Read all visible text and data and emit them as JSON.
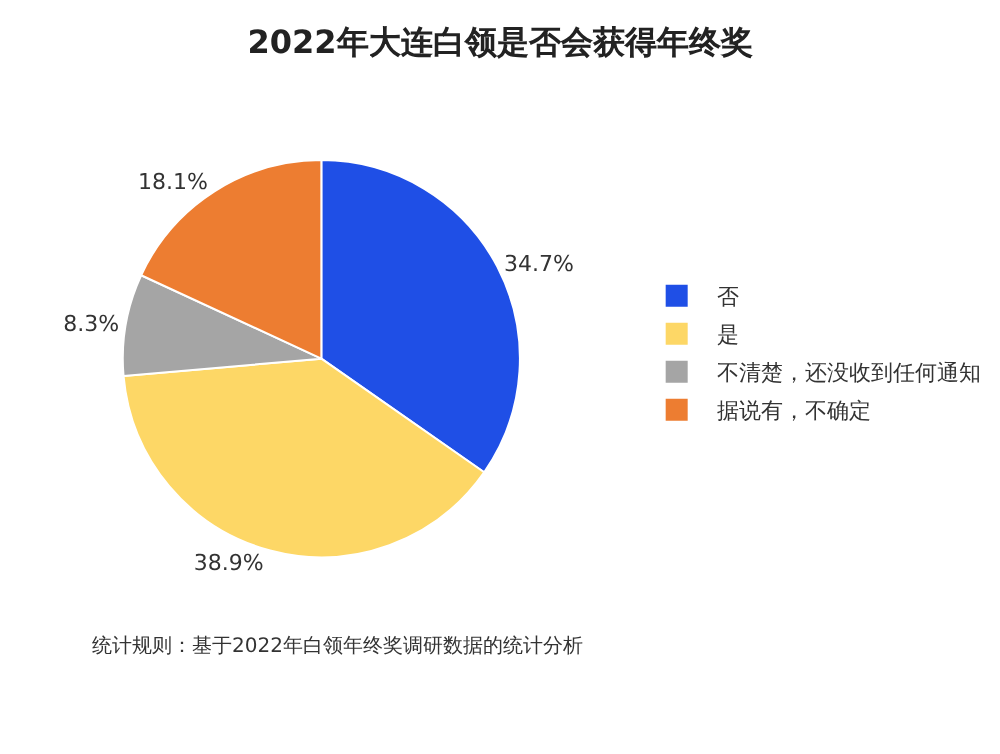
{
  "chart_data": {
    "type": "pie",
    "title": "2022年大连白领是否会获得年终奖",
    "categories": [
      "否",
      "是",
      "不清楚，还没收到任何通知",
      "据说有，不确定"
    ],
    "values": [
      34.7,
      38.9,
      8.3,
      18.1
    ],
    "colors": [
      "#1f4fe6",
      "#fdd766",
      "#a5a5a5",
      "#ed7d31"
    ],
    "value_labels": [
      "34.7%",
      "38.9%",
      "8.3%",
      "18.1%"
    ],
    "legend": "right",
    "annotations": [
      "统计规则：基于2022年白领年终奖调研数据的统计分析"
    ]
  }
}
